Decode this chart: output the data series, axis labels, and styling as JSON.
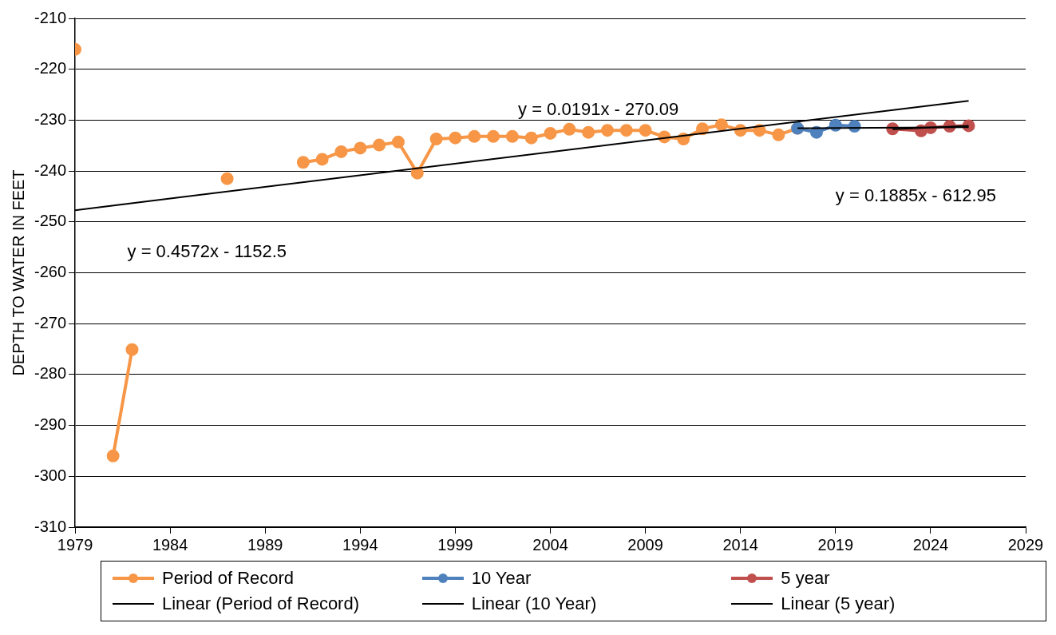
{
  "chart_data": {
    "type": "line",
    "ylabel": "DEPTH TO WATER IN FEET",
    "xlim": [
      1979,
      2029
    ],
    "xticks": [
      1979,
      1984,
      1989,
      1994,
      1999,
      2004,
      2009,
      2014,
      2019,
      2024,
      2029
    ],
    "ylim": [
      -310,
      -210
    ],
    "yticks": [
      -310,
      -300,
      -290,
      -280,
      -270,
      -260,
      -250,
      -240,
      -230,
      -220,
      -210
    ],
    "grid": "y",
    "legend": "bottom",
    "marker": "circle",
    "series": [
      {
        "name": "Period of Record",
        "color": "#f79646",
        "x": [
          1979,
          1980,
          1981,
          1982,
          1983,
          1987,
          1988,
          1991,
          1992,
          1993,
          1994,
          1995,
          1996,
          1997,
          1998,
          1999,
          2000,
          2001,
          2002,
          2003,
          2004,
          2005,
          2006,
          2007,
          2008,
          2009,
          2010,
          2011,
          2012,
          2013,
          2014,
          2015,
          2016,
          2017
        ],
        "values": [
          -216.1,
          null,
          -296.0,
          -275.1,
          null,
          -241.5,
          null,
          -238.3,
          -237.7,
          -236.2,
          -235.5,
          -234.9,
          -234.3,
          -240.4,
          -233.7,
          -233.5,
          -233.2,
          -233.2,
          -233.2,
          -233.5,
          -232.6,
          -231.8,
          -232.4,
          -232.0,
          -232.0,
          -232.0,
          -233.3,
          -233.7,
          -231.7,
          -230.9,
          -232.0,
          -232.0,
          -232.9,
          -231.6
        ]
      },
      {
        "name": "10 Year",
        "color": "#4f81bd",
        "x": [
          2017,
          2018,
          2019,
          2020
        ],
        "values": [
          -231.6,
          -232.4,
          -231.0,
          -231.2
        ]
      },
      {
        "name": "5 year",
        "color": "#c0504d",
        "x": [
          2022,
          2023.5,
          2024,
          2025,
          2026
        ],
        "values": [
          -231.7,
          -232.1,
          -231.5,
          -231.2,
          -231.1
        ]
      },
      {
        "name": "Linear (Period of Record)",
        "marker": "none",
        "color": "#000000",
        "x": [
          1979,
          2026
        ],
        "values": [
          -247.7,
          -226.2
        ]
      },
      {
        "name": "Linear (10 Year)",
        "marker": "none",
        "color": "#000000",
        "x": [
          2017,
          2026
        ],
        "values": [
          -231.6,
          -231.4
        ]
      },
      {
        "name": "Linear (5 year)",
        "marker": "none",
        "color": "#000000",
        "x": [
          2022,
          2026
        ],
        "values": [
          -231.8,
          -231.1
        ]
      }
    ],
    "annotations": [
      "y = 0.0191x - 270.09",
      "y = 0.1885x - 612.95",
      "y = 0.4572x - 1152.5"
    ]
  }
}
